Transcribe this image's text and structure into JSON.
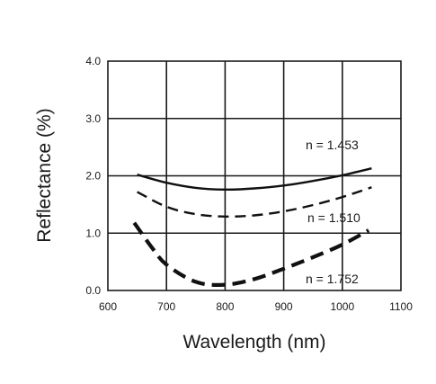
{
  "chart_data": {
    "type": "line",
    "title": "",
    "xlabel": "Wavelength (nm)",
    "ylabel": "Reflectance (%)",
    "xlim": [
      600,
      1100
    ],
    "ylim": [
      0.0,
      4.0
    ],
    "x_ticks": [
      "600",
      "700",
      "800",
      "900",
      "1000",
      "1100"
    ],
    "y_ticks": [
      "0.0",
      "1.0",
      "2.0",
      "3.0",
      "4.0"
    ],
    "grid": true,
    "colors": {
      "line": "#111111",
      "grid": "#1a1a1a",
      "background": "#ffffff"
    },
    "series": [
      {
        "label": "n = 1.453",
        "style": "solid",
        "x": [
          650,
          700,
          750,
          800,
          850,
          900,
          950,
          1000,
          1050
        ],
        "y": [
          2.02,
          1.88,
          1.79,
          1.76,
          1.78,
          1.83,
          1.91,
          2.01,
          2.13
        ]
      },
      {
        "label": "n = 1.510",
        "style": "dashed",
        "x": [
          650,
          700,
          750,
          800,
          850,
          900,
          950,
          1000,
          1050
        ],
        "y": [
          1.72,
          1.46,
          1.33,
          1.29,
          1.31,
          1.38,
          1.49,
          1.63,
          1.8
        ]
      },
      {
        "label": "n = 1.752",
        "style": "bold-dashed",
        "x": [
          645,
          675,
          700,
          750,
          800,
          850,
          900,
          950,
          1000,
          1045
        ],
        "y": [
          1.18,
          0.75,
          0.45,
          0.15,
          0.1,
          0.2,
          0.38,
          0.58,
          0.8,
          1.05
        ]
      }
    ]
  }
}
